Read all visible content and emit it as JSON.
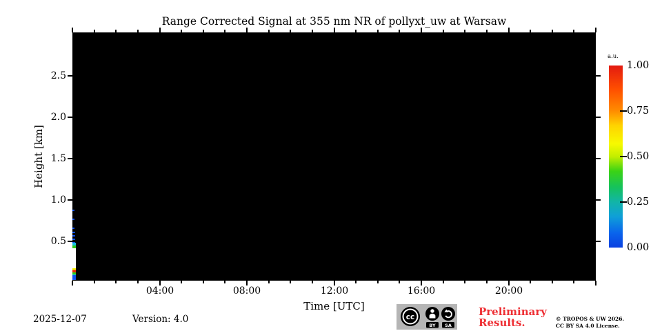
{
  "title": "Range Corrected Signal at 355 nm NR of pollyxt_uw at Warsaw",
  "footer": {
    "date": "2025-12-07",
    "version": "Version: 4.0",
    "preliminary_line1": "Preliminary",
    "preliminary_line2": "Results.",
    "preliminary_color": "#ee2e33",
    "copyright_line1": "© TROPOS & UW 2026.",
    "copyright_line2": "CC BY SA 4.0 License."
  },
  "cc_badge": {
    "cc_label": "cc",
    "by_label": "BY",
    "sa_label": "SA"
  },
  "chart_data": {
    "type": "heatmap",
    "title": "Range Corrected Signal at 355 nm NR of pollyxt_uw at Warsaw",
    "xlabel": "Time [UTC]",
    "ylabel": "Height [km]",
    "xlim_hours": [
      0,
      24
    ],
    "ylim_km": [
      0.025,
      3.025
    ],
    "grid": false,
    "plot_background": "#000000",
    "x_major_ticks": [
      {
        "hour": 0,
        "label": ""
      },
      {
        "hour": 4,
        "label": "04:00"
      },
      {
        "hour": 8,
        "label": "08:00"
      },
      {
        "hour": 12,
        "label": "12:00"
      },
      {
        "hour": 16,
        "label": "16:00"
      },
      {
        "hour": 20,
        "label": "20:00"
      },
      {
        "hour": 24,
        "label": ""
      }
    ],
    "x_minor_tick_hours": [
      1,
      2,
      3,
      5,
      6,
      7,
      9,
      10,
      11,
      13,
      14,
      15,
      17,
      18,
      19,
      21,
      22,
      23
    ],
    "y_major_ticks": [
      {
        "km": 0.5,
        "label": "0.5"
      },
      {
        "km": 1.0,
        "label": "1.0"
      },
      {
        "km": 1.5,
        "label": "1.5"
      },
      {
        "km": 2.0,
        "label": "2.0"
      },
      {
        "km": 2.5,
        "label": "2.5"
      }
    ],
    "colorbar": {
      "label": "a.u.",
      "ticks": [
        {
          "value": 0.0,
          "label": "0.00"
        },
        {
          "value": 0.25,
          "label": "0.25"
        },
        {
          "value": 0.5,
          "label": "0.50"
        },
        {
          "value": 0.75,
          "label": "0.75"
        },
        {
          "value": 1.0,
          "label": "1.00"
        }
      ],
      "gradient_stops": [
        {
          "value": 0.0,
          "color": "#0b41e1"
        },
        {
          "value": 0.08,
          "color": "#0a64ec"
        },
        {
          "value": 0.17,
          "color": "#0f9fd8"
        },
        {
          "value": 0.25,
          "color": "#12b5a8"
        },
        {
          "value": 0.33,
          "color": "#15c25d"
        },
        {
          "value": 0.42,
          "color": "#3bd315"
        },
        {
          "value": 0.5,
          "color": "#c3ee00"
        },
        {
          "value": 0.57,
          "color": "#f7fa00"
        },
        {
          "value": 0.67,
          "color": "#ffd300"
        },
        {
          "value": 0.75,
          "color": "#ff8c00"
        },
        {
          "value": 0.87,
          "color": "#ff4f00"
        },
        {
          "value": 1.0,
          "color": "#e31a10"
        }
      ]
    },
    "signal_profile": {
      "description": "Narrow lidar profile at ~00:00-00:10 UTC at the left edge; the rest of the day shows no signal (black field).",
      "start_hour": 0.0,
      "end_hour": 0.16,
      "segments": [
        {
          "km_from": 0.62,
          "km_to": 0.88,
          "value_au": 0.03,
          "color": "#0d4ff0",
          "style": "speckle-sparse"
        },
        {
          "km_from": 0.483,
          "km_to": 0.62,
          "value_au": 0.06,
          "color": "#0d4ff0",
          "style": "speckle-dense"
        },
        {
          "km_from": 0.45,
          "km_to": 0.483,
          "value_au": 0.2,
          "color": "#17c0e0",
          "style": "solid"
        },
        {
          "km_from": 0.417,
          "km_to": 0.45,
          "value_au": 0.4,
          "color": "#2ecc1f",
          "style": "solid"
        },
        {
          "km_from": 0.175,
          "km_to": 0.417,
          "value_au": 1.0,
          "color": "#ffffff",
          "style": "solid"
        },
        {
          "km_from": 0.157,
          "km_to": 0.175,
          "value_au": 0.55,
          "color": "#f5f500",
          "style": "solid"
        },
        {
          "km_from": 0.146,
          "km_to": 0.157,
          "value_au": 0.75,
          "color": "#ff8c00",
          "style": "solid"
        },
        {
          "km_from": 0.125,
          "km_to": 0.146,
          "value_au": 0.95,
          "color": "#e8260d",
          "style": "solid"
        },
        {
          "km_from": 0.104,
          "km_to": 0.125,
          "value_au": 0.4,
          "color": "#2ecc1f",
          "style": "solid"
        },
        {
          "km_from": 0.088,
          "km_to": 0.104,
          "value_au": 0.2,
          "color": "#17c0e0",
          "style": "solid"
        },
        {
          "km_from": 0.03,
          "km_to": 0.088,
          "value_au": 0.05,
          "color": "#0d4ff0",
          "style": "solid"
        }
      ]
    }
  }
}
